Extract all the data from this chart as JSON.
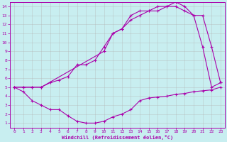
{
  "xlabel": "Windchill (Refroidissement éolien,°C)",
  "background_color": "#c8eef0",
  "grid_color": "#b0b0b0",
  "line_color": "#aa00aa",
  "xlim": [
    -0.5,
    23.5
  ],
  "ylim": [
    0.5,
    14.5
  ],
  "xticks": [
    0,
    1,
    2,
    3,
    4,
    5,
    6,
    7,
    8,
    9,
    10,
    11,
    12,
    13,
    14,
    15,
    16,
    17,
    18,
    19,
    20,
    21,
    22,
    23
  ],
  "yticks": [
    1,
    2,
    3,
    4,
    5,
    6,
    7,
    8,
    9,
    10,
    11,
    12,
    13,
    14
  ],
  "line1_x": [
    0,
    1,
    2,
    3,
    10,
    11,
    12,
    13,
    14,
    15,
    16,
    17,
    18,
    19,
    20,
    21,
    22,
    23
  ],
  "line1_y": [
    5.0,
    5.0,
    5.0,
    5.0,
    9.0,
    11.0,
    11.5,
    12.5,
    13.0,
    13.5,
    13.5,
    14.0,
    14.5,
    14.0,
    13.0,
    13.0,
    9.5,
    5.5
  ],
  "line2_x": [
    0,
    1,
    2,
    3,
    4,
    5,
    6,
    7,
    8,
    9,
    10,
    11,
    12,
    13,
    14,
    15,
    16,
    17,
    18,
    19,
    20,
    21,
    22,
    23
  ],
  "line2_y": [
    5.0,
    4.5,
    3.5,
    3.0,
    2.5,
    2.5,
    1.8,
    1.2,
    1.0,
    1.0,
    1.2,
    1.7,
    2.0,
    2.5,
    3.5,
    3.8,
    3.9,
    4.0,
    4.2,
    4.3,
    4.5,
    4.6,
    4.7,
    5.0
  ],
  "line3_x": [
    0,
    1,
    2,
    3,
    4,
    5,
    6,
    7,
    8,
    9,
    10,
    11,
    12,
    13,
    14,
    15,
    16,
    17,
    18,
    19,
    20,
    21,
    22,
    23
  ],
  "line3_y": [
    5.0,
    5.0,
    5.0,
    5.0,
    5.5,
    5.8,
    6.2,
    7.5,
    7.5,
    8.0,
    9.5,
    11.0,
    11.5,
    13.0,
    13.5,
    13.5,
    14.0,
    14.0,
    14.0,
    13.5,
    13.0,
    9.5,
    5.0,
    5.5
  ]
}
